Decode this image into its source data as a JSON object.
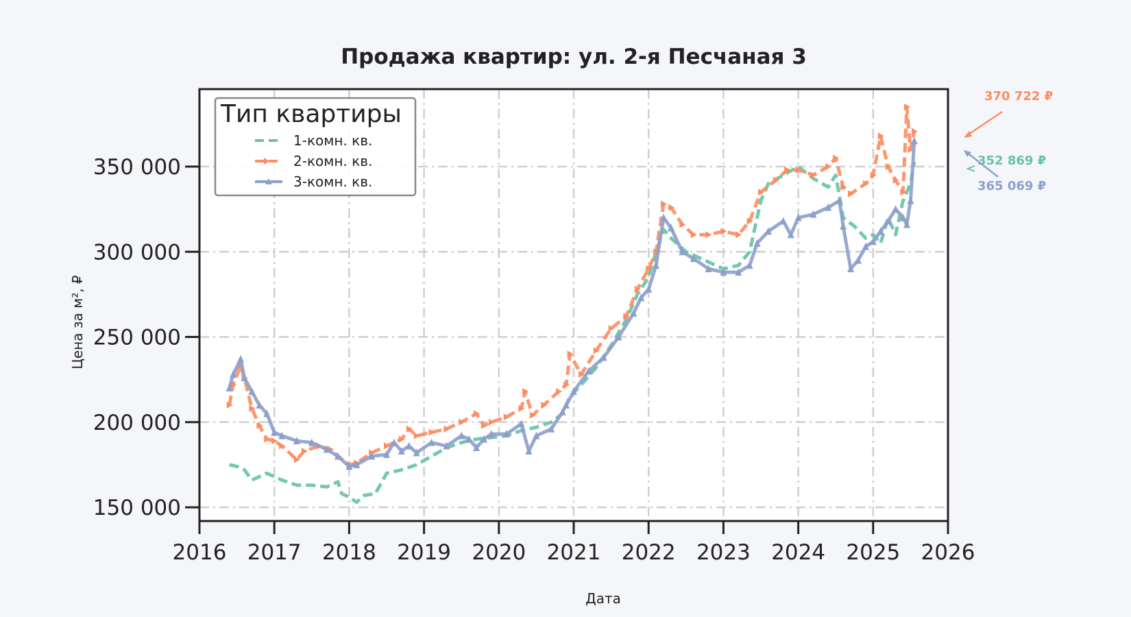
{
  "chart_data": {
    "type": "line",
    "title": "Продажа квартир: ул. 2-я Песчаная 3",
    "xlabel": "Дата",
    "ylabel": "Цена за м², ₽",
    "xlim": [
      2016,
      2026
    ],
    "ylim": [
      143000,
      396000
    ],
    "x_ticks": [
      "2016",
      "2017",
      "2018",
      "2019",
      "2020",
      "2021",
      "2022",
      "2023",
      "2024",
      "2025",
      "2026"
    ],
    "y_ticks": [
      "150 000",
      "200 000",
      "250 000",
      "300 000",
      "350 000"
    ],
    "y_tick_values": [
      150000,
      200000,
      250000,
      300000,
      350000
    ],
    "grid": true,
    "legend": {
      "title": "Тип квартиры",
      "position": "upper left"
    },
    "series": [
      {
        "name": "1-комн. кв.",
        "color": "#66c2a5",
        "style": "dashed",
        "x": [
          2016.4,
          2016.5,
          2016.6,
          2016.7,
          2016.8,
          2016.9,
          2017.0,
          2017.1,
          2017.3,
          2017.5,
          2017.7,
          2017.85,
          2017.9,
          2018.0,
          2018.1,
          2018.2,
          2018.35,
          2018.5,
          2018.7,
          2018.9,
          2019.1,
          2019.3,
          2019.5,
          2019.7,
          2019.9,
          2020.1,
          2020.3,
          2020.5,
          2020.7,
          2020.85,
          2020.95,
          2021.1,
          2021.3,
          2021.5,
          2021.7,
          2021.85,
          2022.0,
          2022.1,
          2022.2,
          2022.3,
          2022.5,
          2022.7,
          2022.9,
          2023.0,
          2023.2,
          2023.35,
          2023.5,
          2023.6,
          2023.8,
          2024.0,
          2024.2,
          2024.4,
          2024.5,
          2024.6,
          2024.75,
          2024.9,
          2025.0,
          2025.1,
          2025.2,
          2025.3,
          2025.4,
          2025.5,
          2025.55
        ],
        "values": [
          175000,
          174000,
          172000,
          166000,
          168000,
          170000,
          168000,
          166000,
          163000,
          163000,
          162000,
          165000,
          158000,
          156000,
          153000,
          157000,
          158000,
          170000,
          172000,
          175000,
          180000,
          185000,
          188000,
          190000,
          191000,
          192000,
          195000,
          197000,
          200000,
          205000,
          215000,
          222000,
          232000,
          245000,
          260000,
          275000,
          285000,
          300000,
          313000,
          308000,
          300000,
          296000,
          292000,
          290000,
          292000,
          300000,
          330000,
          340000,
          345000,
          350000,
          343000,
          338000,
          345000,
          320000,
          315000,
          308000,
          310000,
          305000,
          320000,
          310000,
          330000,
          340000,
          352869
        ]
      },
      {
        "name": "2-комн. кв.",
        "color": "#fc8d62",
        "style": "dashed-arrow",
        "x": [
          2016.4,
          2016.45,
          2016.55,
          2016.6,
          2016.7,
          2016.8,
          2016.9,
          2017.0,
          2017.1,
          2017.3,
          2017.4,
          2017.6,
          2017.75,
          2017.85,
          2018.0,
          2018.1,
          2018.3,
          2018.5,
          2018.7,
          2018.8,
          2018.9,
          2019.1,
          2019.3,
          2019.5,
          2019.7,
          2019.8,
          2019.9,
          2020.1,
          2020.3,
          2020.35,
          2020.45,
          2020.6,
          2020.8,
          2020.9,
          2020.95,
          2021.1,
          2021.3,
          2021.5,
          2021.7,
          2021.85,
          2022.0,
          2022.1,
          2022.2,
          2022.3,
          2022.45,
          2022.6,
          2022.8,
          2023.0,
          2023.2,
          2023.35,
          2023.5,
          2023.7,
          2023.85,
          2024.0,
          2024.2,
          2024.4,
          2024.5,
          2024.6,
          2024.7,
          2024.9,
          2025.0,
          2025.1,
          2025.2,
          2025.3,
          2025.4,
          2025.45,
          2025.5,
          2025.55
        ],
        "values": [
          210000,
          222000,
          233000,
          226000,
          208000,
          198000,
          190000,
          189000,
          186000,
          178000,
          183000,
          186000,
          184000,
          180000,
          175000,
          176000,
          182000,
          186000,
          190000,
          196000,
          192000,
          194000,
          196000,
          200000,
          205000,
          198000,
          200000,
          203000,
          208000,
          218000,
          204000,
          210000,
          218000,
          222000,
          240000,
          228000,
          242000,
          255000,
          262000,
          278000,
          290000,
          300000,
          328000,
          326000,
          316000,
          310000,
          310000,
          312000,
          310000,
          318000,
          335000,
          342000,
          348000,
          348000,
          345000,
          350000,
          355000,
          338000,
          334000,
          340000,
          345000,
          368000,
          350000,
          342000,
          335000,
          385000,
          360000,
          370722
        ]
      },
      {
        "name": "3-комн. кв.",
        "color": "#8da0cb",
        "style": "solid-triangle",
        "x": [
          2016.4,
          2016.45,
          2016.55,
          2016.6,
          2016.7,
          2016.8,
          2016.9,
          2017.0,
          2017.1,
          2017.3,
          2017.5,
          2017.7,
          2017.85,
          2018.0,
          2018.1,
          2018.3,
          2018.5,
          2018.6,
          2018.7,
          2018.8,
          2018.9,
          2019.1,
          2019.3,
          2019.5,
          2019.6,
          2019.7,
          2019.8,
          2019.9,
          2020.1,
          2020.3,
          2020.4,
          2020.5,
          2020.7,
          2020.85,
          2020.9,
          2021.0,
          2021.2,
          2021.4,
          2021.6,
          2021.8,
          2021.9,
          2022.0,
          2022.1,
          2022.2,
          2022.3,
          2022.45,
          2022.6,
          2022.8,
          2023.0,
          2023.2,
          2023.35,
          2023.45,
          2023.6,
          2023.8,
          2023.9,
          2024.0,
          2024.2,
          2024.4,
          2024.55,
          2024.6,
          2024.7,
          2024.8,
          2024.9,
          2025.0,
          2025.1,
          2025.2,
          2025.3,
          2025.4,
          2025.45,
          2025.5,
          2025.55
        ],
        "values": [
          220000,
          228000,
          237000,
          226000,
          218000,
          210000,
          205000,
          194000,
          192000,
          189000,
          188000,
          184000,
          180000,
          174000,
          175000,
          180000,
          181000,
          188000,
          183000,
          186000,
          182000,
          188000,
          186000,
          192000,
          190000,
          185000,
          190000,
          193000,
          193000,
          199000,
          183000,
          192000,
          196000,
          206000,
          210000,
          218000,
          230000,
          238000,
          250000,
          264000,
          273000,
          278000,
          292000,
          320000,
          314000,
          300000,
          296000,
          290000,
          288000,
          288000,
          292000,
          305000,
          312000,
          318000,
          310000,
          320000,
          322000,
          326000,
          330000,
          315000,
          290000,
          295000,
          303000,
          306000,
          312000,
          318000,
          325000,
          320000,
          316000,
          330000,
          365069
        ]
      }
    ],
    "annotations": [
      {
        "text": "370 722 ₽",
        "series": "2-комн. кв.",
        "color": "#fc8d62",
        "value": 370722
      },
      {
        "text": "352 869 ₽",
        "series": "1-комн. кв.",
        "color": "#66c2a5",
        "value": 352869
      },
      {
        "text": "365 069 ₽",
        "series": "3-комн. кв.",
        "color": "#8da0cb",
        "value": 365069
      }
    ]
  }
}
